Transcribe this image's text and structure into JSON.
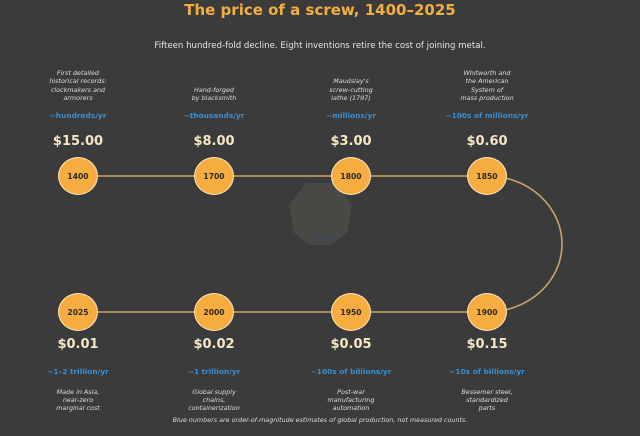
{
  "title": "The price of a screw, 1400–2025",
  "subtitle": "Fifteen hundred-fold decline. Eight inventions retire the cost of joining metal.",
  "footer": "Blue numbers are order-of-magnitude estimates of global production, not measured counts.",
  "colors": {
    "background": "#3b3b3b",
    "title": "#f2ae40",
    "node_fill": "#f7ac3f",
    "connector": "#c9a468",
    "production": "#3b8fd0",
    "price": "#f6e7c4"
  },
  "top_row": [
    {
      "year": "1400",
      "price": "$15.00",
      "production": "~hundreds/yr",
      "note": "First detailed\nhistorical records:\nclockmakers and\narmorers"
    },
    {
      "year": "1700",
      "price": "$8.00",
      "production": "~thousands/yr",
      "note": "Hand-forged\nby blacksmith"
    },
    {
      "year": "1800",
      "price": "$3.00",
      "production": "~millions/yr",
      "note": "Maudslay's\nscrew-cutting\nlathe (1797)"
    },
    {
      "year": "1850",
      "price": "$0.60",
      "production": "~100s of millions/yr",
      "note": "Whitworth and\nthe American\nSystem of\nmass production"
    }
  ],
  "bottom_row": [
    {
      "year": "2025",
      "price": "$0.01",
      "production": "~1–2 trillion/yr",
      "note": "Made in Asia,\nnear-zero\nmarginal cost"
    },
    {
      "year": "2000",
      "price": "$0.02",
      "production": "~1 trillion/yr",
      "note": "Global supply\nchains,\ncontainerization"
    },
    {
      "year": "1950",
      "price": "$0.05",
      "production": "~100s of billions/yr",
      "note": "Post-war\nmanufacturing\nautomation"
    },
    {
      "year": "1900",
      "price": "$0.15",
      "production": "~10s of billions/yr",
      "note": "Bessemer steel,\nstandardized\nparts"
    }
  ]
}
